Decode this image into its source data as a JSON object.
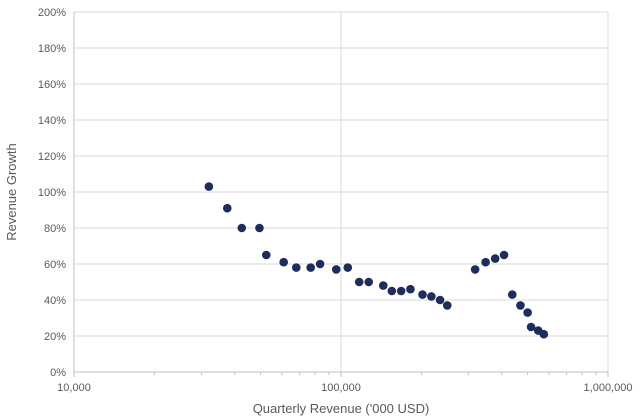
{
  "chart_data": {
    "type": "scatter",
    "xscale": "log",
    "xlabel": "Quarterly Revenue ('000 USD)",
    "ylabel": "Revenue Growth",
    "xlim": [
      10000,
      1000000
    ],
    "ylim": [
      0,
      2.0
    ],
    "xticks": [
      {
        "value": 10000,
        "label": "10,000"
      },
      {
        "value": 100000,
        "label": "100,000"
      },
      {
        "value": 1000000,
        "label": "1,000,000"
      }
    ],
    "yticks": [
      {
        "value": 0.0,
        "label": "0%"
      },
      {
        "value": 0.2,
        "label": "20%"
      },
      {
        "value": 0.4,
        "label": "40%"
      },
      {
        "value": 0.6,
        "label": "60%"
      },
      {
        "value": 0.8,
        "label": "80%"
      },
      {
        "value": 1.0,
        "label": "100%"
      },
      {
        "value": 1.2,
        "label": "120%"
      },
      {
        "value": 1.4,
        "label": "140%"
      },
      {
        "value": 1.6,
        "label": "160%"
      },
      {
        "value": 1.8,
        "label": "180%"
      },
      {
        "value": 2.0,
        "label": "200%"
      }
    ],
    "grid": true,
    "marker_color": "#1f2d5c",
    "points": [
      {
        "x": 32000,
        "y": 1.03
      },
      {
        "x": 37500,
        "y": 0.91
      },
      {
        "x": 42500,
        "y": 0.8
      },
      {
        "x": 49500,
        "y": 0.8
      },
      {
        "x": 52500,
        "y": 0.65
      },
      {
        "x": 61000,
        "y": 0.61
      },
      {
        "x": 68000,
        "y": 0.58
      },
      {
        "x": 77000,
        "y": 0.58
      },
      {
        "x": 83500,
        "y": 0.6
      },
      {
        "x": 96000,
        "y": 0.57
      },
      {
        "x": 106000,
        "y": 0.58
      },
      {
        "x": 117000,
        "y": 0.5
      },
      {
        "x": 127000,
        "y": 0.5
      },
      {
        "x": 144000,
        "y": 0.48
      },
      {
        "x": 155000,
        "y": 0.45
      },
      {
        "x": 168000,
        "y": 0.45
      },
      {
        "x": 182000,
        "y": 0.46
      },
      {
        "x": 202000,
        "y": 0.43
      },
      {
        "x": 218000,
        "y": 0.42
      },
      {
        "x": 235000,
        "y": 0.4
      },
      {
        "x": 250000,
        "y": 0.37
      },
      {
        "x": 318000,
        "y": 0.57
      },
      {
        "x": 348000,
        "y": 0.61
      },
      {
        "x": 378000,
        "y": 0.63
      },
      {
        "x": 408000,
        "y": 0.65
      },
      {
        "x": 438000,
        "y": 0.43
      },
      {
        "x": 470000,
        "y": 0.37
      },
      {
        "x": 500000,
        "y": 0.33
      },
      {
        "x": 515000,
        "y": 0.25
      },
      {
        "x": 548000,
        "y": 0.23
      },
      {
        "x": 575000,
        "y": 0.21
      }
    ]
  }
}
